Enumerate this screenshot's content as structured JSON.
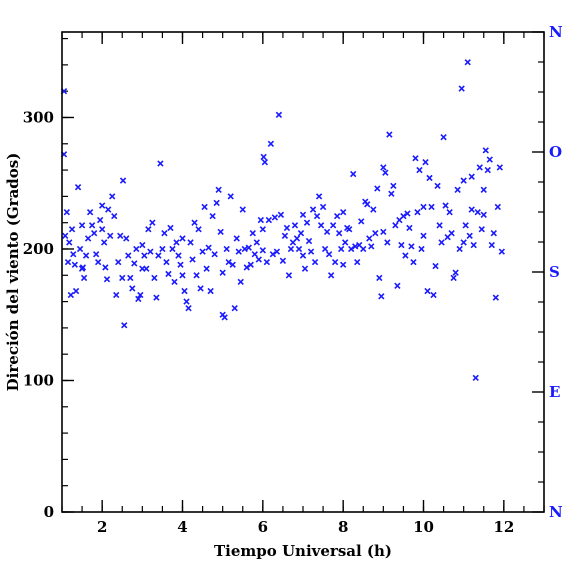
{
  "chart_data": {
    "type": "scatter",
    "title": "",
    "xlabel": "Tiempo Universal (h)",
    "ylabel": "Direción del viento (Grados)",
    "xlim": [
      1,
      13
    ],
    "ylim": [
      0,
      365
    ],
    "x_ticks": [
      2,
      4,
      6,
      8,
      10,
      12
    ],
    "y_ticks": [
      0,
      100,
      200,
      300
    ],
    "x_minor_step": 0.5,
    "y_minor_step": 20,
    "right_axis": {
      "labels": [
        {
          "value": 0,
          "label": "N"
        },
        {
          "value": 90,
          "label": "E"
        },
        {
          "value": 180,
          "label": "S"
        },
        {
          "value": 270,
          "label": "O"
        },
        {
          "value": 360,
          "label": "N"
        }
      ],
      "color": "#1a1aff"
    },
    "marker": "x",
    "marker_color": "#1a1aff",
    "grid": false,
    "points": [
      [
        1.05,
        320
      ],
      [
        1.05,
        272
      ],
      [
        1.08,
        210
      ],
      [
        1.12,
        228
      ],
      [
        1.15,
        190
      ],
      [
        1.18,
        205
      ],
      [
        1.22,
        165
      ],
      [
        1.25,
        215
      ],
      [
        1.28,
        196
      ],
      [
        1.32,
        188
      ],
      [
        1.35,
        168
      ],
      [
        1.4,
        247
      ],
      [
        1.45,
        200
      ],
      [
        1.5,
        218
      ],
      [
        1.52,
        186
      ],
      [
        1.55,
        178
      ],
      [
        1.6,
        195
      ],
      [
        1.65,
        208
      ],
      [
        1.7,
        228
      ],
      [
        1.75,
        218
      ],
      [
        1.8,
        212
      ],
      [
        1.85,
        196
      ],
      [
        1.9,
        190
      ],
      [
        1.95,
        222
      ],
      [
        2.0,
        233
      ],
      [
        2.05,
        205
      ],
      [
        2.08,
        186
      ],
      [
        2.12,
        177
      ],
      [
        2.15,
        230
      ],
      [
        2.2,
        210
      ],
      [
        2.25,
        240
      ],
      [
        2.3,
        225
      ],
      [
        2.35,
        165
      ],
      [
        2.4,
        190
      ],
      [
        2.45,
        210
      ],
      [
        2.5,
        178
      ],
      [
        2.52,
        252
      ],
      [
        2.55,
        142
      ],
      [
        2.6,
        208
      ],
      [
        2.65,
        195
      ],
      [
        2.7,
        178
      ],
      [
        2.75,
        170
      ],
      [
        2.8,
        189
      ],
      [
        2.85,
        200
      ],
      [
        2.9,
        162
      ],
      [
        2.95,
        165
      ],
      [
        3.0,
        203
      ],
      [
        3.05,
        195
      ],
      [
        3.1,
        185
      ],
      [
        3.15,
        215
      ],
      [
        3.2,
        198
      ],
      [
        3.25,
        220
      ],
      [
        3.3,
        178
      ],
      [
        3.35,
        163
      ],
      [
        3.4,
        195
      ],
      [
        3.45,
        265
      ],
      [
        3.5,
        200
      ],
      [
        3.55,
        212
      ],
      [
        3.6,
        190
      ],
      [
        3.65,
        181
      ],
      [
        3.7,
        216
      ],
      [
        3.75,
        200
      ],
      [
        3.8,
        175
      ],
      [
        3.85,
        205
      ],
      [
        3.9,
        195
      ],
      [
        3.95,
        188
      ],
      [
        4.0,
        208
      ],
      [
        4.05,
        168
      ],
      [
        4.1,
        160
      ],
      [
        4.15,
        155
      ],
      [
        4.2,
        205
      ],
      [
        4.25,
        192
      ],
      [
        4.3,
        220
      ],
      [
        4.35,
        180
      ],
      [
        4.4,
        215
      ],
      [
        4.45,
        170
      ],
      [
        4.5,
        198
      ],
      [
        4.55,
        232
      ],
      [
        4.6,
        185
      ],
      [
        4.65,
        201
      ],
      [
        4.7,
        168
      ],
      [
        4.75,
        225
      ],
      [
        4.8,
        196
      ],
      [
        4.85,
        235
      ],
      [
        4.9,
        245
      ],
      [
        4.95,
        213
      ],
      [
        5.0,
        150
      ],
      [
        5.05,
        148
      ],
      [
        5.1,
        200
      ],
      [
        5.15,
        190
      ],
      [
        5.2,
        240
      ],
      [
        5.25,
        188
      ],
      [
        5.3,
        155
      ],
      [
        5.35,
        208
      ],
      [
        5.4,
        198
      ],
      [
        5.45,
        175
      ],
      [
        5.5,
        230
      ],
      [
        5.55,
        200
      ],
      [
        5.6,
        186
      ],
      [
        5.65,
        201
      ],
      [
        5.7,
        188
      ],
      [
        5.75,
        212
      ],
      [
        5.8,
        196
      ],
      [
        5.85,
        205
      ],
      [
        5.9,
        192
      ],
      [
        5.95,
        222
      ],
      [
        6.0,
        199
      ],
      [
        6.02,
        270
      ],
      [
        6.05,
        266
      ],
      [
        6.1,
        190
      ],
      [
        6.15,
        222
      ],
      [
        6.2,
        280
      ],
      [
        6.25,
        196
      ],
      [
        6.3,
        224
      ],
      [
        6.35,
        198
      ],
      [
        6.4,
        302
      ],
      [
        6.45,
        226
      ],
      [
        6.5,
        191
      ],
      [
        6.55,
        210
      ],
      [
        6.6,
        216
      ],
      [
        6.65,
        180
      ],
      [
        6.7,
        200
      ],
      [
        6.75,
        205
      ],
      [
        6.8,
        218
      ],
      [
        6.85,
        208
      ],
      [
        6.9,
        200
      ],
      [
        6.95,
        212
      ],
      [
        7.0,
        195
      ],
      [
        7.05,
        185
      ],
      [
        7.1,
        220
      ],
      [
        7.15,
        206
      ],
      [
        7.2,
        198
      ],
      [
        7.25,
        230
      ],
      [
        7.3,
        190
      ],
      [
        7.35,
        225
      ],
      [
        7.4,
        240
      ],
      [
        7.45,
        218
      ],
      [
        7.5,
        232
      ],
      [
        7.55,
        200
      ],
      [
        7.6,
        213
      ],
      [
        7.65,
        196
      ],
      [
        7.7,
        180
      ],
      [
        7.75,
        218
      ],
      [
        7.8,
        190
      ],
      [
        7.85,
        225
      ],
      [
        7.9,
        212
      ],
      [
        7.95,
        200
      ],
      [
        8.0,
        188
      ],
      [
        8.05,
        205
      ],
      [
        8.1,
        216
      ],
      [
        8.15,
        215
      ],
      [
        8.2,
        200
      ],
      [
        8.25,
        257
      ],
      [
        8.3,
        202
      ],
      [
        8.35,
        190
      ],
      [
        8.4,
        203
      ],
      [
        8.45,
        221
      ],
      [
        8.5,
        200
      ],
      [
        8.55,
        236
      ],
      [
        8.6,
        234
      ],
      [
        8.65,
        208
      ],
      [
        8.7,
        202
      ],
      [
        8.75,
        230
      ],
      [
        8.8,
        212
      ],
      [
        8.85,
        246
      ],
      [
        8.9,
        178
      ],
      [
        8.95,
        164
      ],
      [
        9.0,
        213
      ],
      [
        9.05,
        258
      ],
      [
        9.1,
        205
      ],
      [
        9.15,
        287
      ],
      [
        9.2,
        242
      ],
      [
        9.25,
        248
      ],
      [
        9.3,
        218
      ],
      [
        9.35,
        172
      ],
      [
        9.4,
        222
      ],
      [
        9.45,
        203
      ],
      [
        9.5,
        225
      ],
      [
        9.55,
        195
      ],
      [
        9.6,
        227
      ],
      [
        9.65,
        216
      ],
      [
        9.7,
        202
      ],
      [
        9.75,
        190
      ],
      [
        9.8,
        269
      ],
      [
        9.85,
        228
      ],
      [
        9.9,
        260
      ],
      [
        9.95,
        200
      ],
      [
        10.0,
        210
      ],
      [
        10.05,
        266
      ],
      [
        10.1,
        168
      ],
      [
        10.15,
        254
      ],
      [
        10.2,
        232
      ],
      [
        10.25,
        165
      ],
      [
        10.3,
        187
      ],
      [
        10.35,
        248
      ],
      [
        10.4,
        218
      ],
      [
        10.45,
        205
      ],
      [
        10.5,
        285
      ],
      [
        10.55,
        233
      ],
      [
        10.6,
        209
      ],
      [
        10.65,
        228
      ],
      [
        10.7,
        212
      ],
      [
        10.75,
        178
      ],
      [
        10.8,
        182
      ],
      [
        10.85,
        245
      ],
      [
        10.9,
        200
      ],
      [
        10.95,
        322
      ],
      [
        11.0,
        252
      ],
      [
        11.05,
        218
      ],
      [
        11.1,
        342
      ],
      [
        11.15,
        210
      ],
      [
        11.2,
        255
      ],
      [
        11.25,
        203
      ],
      [
        11.3,
        102
      ],
      [
        11.35,
        228
      ],
      [
        11.4,
        262
      ],
      [
        11.45,
        215
      ],
      [
        11.5,
        245
      ],
      [
        11.55,
        275
      ],
      [
        11.6,
        260
      ],
      [
        11.65,
        268
      ],
      [
        11.7,
        203
      ],
      [
        11.75,
        212
      ],
      [
        11.8,
        163
      ],
      [
        11.85,
        232
      ],
      [
        11.9,
        262
      ],
      [
        11.95,
        198
      ],
      [
        11.0,
        205
      ],
      [
        11.2,
        230
      ],
      [
        11.5,
        226
      ],
      [
        10.0,
        232
      ],
      [
        9.0,
        262
      ],
      [
        8.0,
        228
      ],
      [
        7.0,
        226
      ],
      [
        6.0,
        215
      ],
      [
        5.0,
        182
      ],
      [
        4.0,
        180
      ],
      [
        3.0,
        185
      ],
      [
        2.0,
        215
      ],
      [
        1.5,
        185
      ]
    ]
  }
}
